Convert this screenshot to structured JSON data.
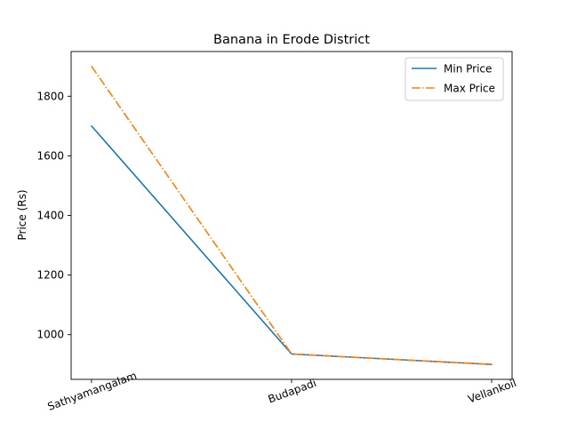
{
  "chart_data": {
    "type": "line",
    "title": "Banana in Erode District",
    "xlabel": "",
    "ylabel": "Price (Rs)",
    "categories": [
      "Sathyamangalam",
      "Budapadi",
      "Vellankoil"
    ],
    "yticks": [
      1000,
      1200,
      1400,
      1600,
      1800
    ],
    "ylim": [
      850,
      1950
    ],
    "grid": false,
    "legend_position": "top-right",
    "series": [
      {
        "name": "Min Price",
        "values": [
          1700,
          935,
          900
        ],
        "color": "#1f77b4",
        "style": "solid"
      },
      {
        "name": "Max Price",
        "values": [
          1900,
          935,
          900
        ],
        "color": "#ff7f0e",
        "style": "dashdot"
      }
    ]
  }
}
